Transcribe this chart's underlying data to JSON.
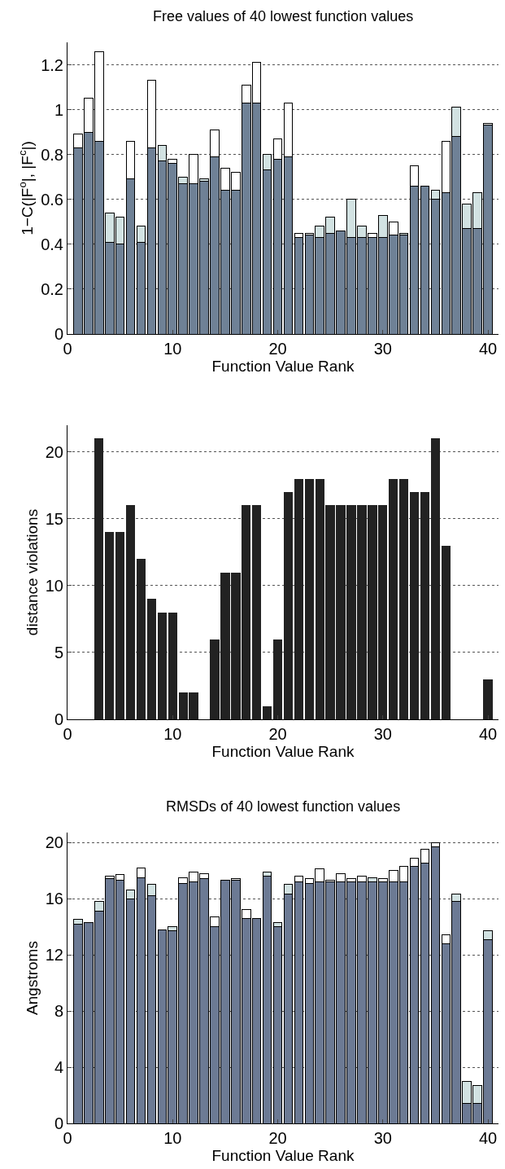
{
  "chart_data": [
    {
      "type": "bar",
      "title": "Free values of 40 lowest function values",
      "xlabel": "Function Value Rank",
      "ylabel": "1−C(|F$^{o}$|, |F$^{c}$|)",
      "stacked": true,
      "grid": "y",
      "x": [
        1,
        2,
        3,
        4,
        5,
        6,
        7,
        8,
        9,
        10,
        11,
        12,
        13,
        14,
        15,
        16,
        17,
        18,
        19,
        20,
        21,
        22,
        23,
        24,
        25,
        26,
        27,
        28,
        29,
        30,
        31,
        32,
        33,
        34,
        35,
        36,
        37,
        38,
        39,
        40
      ],
      "xlim": [
        0,
        41
      ],
      "xticks": [
        0,
        10,
        20,
        30,
        40
      ],
      "ylim": [
        0,
        1.3
      ],
      "yticks": [
        0,
        0.2,
        0.4,
        0.6,
        0.8,
        1,
        1.2
      ],
      "series": [
        {
          "color": "#6f8196",
          "values": [
            0.83,
            0.9,
            0.86,
            0.41,
            0.4,
            0.69,
            0.41,
            0.83,
            0.77,
            0.76,
            0.67,
            0.67,
            0.68,
            0.79,
            0.64,
            0.64,
            1.03,
            1.03,
            0.73,
            0.78,
            0.79,
            0.43,
            0.44,
            0.43,
            0.45,
            0.46,
            0.43,
            0.43,
            0.43,
            0.43,
            0.44,
            0.44,
            0.66,
            0.66,
            0.6,
            0.63,
            0.88,
            0.47,
            0.47,
            0.93
          ]
        },
        {
          "color": "#d2e2e2",
          "values": [
            null,
            null,
            null,
            0.13,
            0.12,
            null,
            0.07,
            null,
            0.07,
            null,
            0.03,
            null,
            0.01,
            null,
            null,
            null,
            null,
            null,
            0.07,
            null,
            null,
            null,
            null,
            0.05,
            0.07,
            null,
            0.17,
            0.05,
            null,
            0.1,
            null,
            0.01,
            null,
            null,
            0.04,
            null,
            0.13,
            0.11,
            0.16,
            null
          ]
        },
        {
          "color": "#ffffff",
          "values": [
            0.06,
            0.15,
            0.4,
            null,
            null,
            0.17,
            null,
            0.3,
            null,
            0.02,
            null,
            0.13,
            null,
            0.12,
            0.1,
            0.08,
            0.08,
            0.18,
            null,
            0.09,
            0.24,
            0.02,
            0.01,
            null,
            null,
            null,
            null,
            null,
            0.02,
            null,
            0.06,
            null,
            0.09,
            null,
            null,
            0.23,
            null,
            null,
            null,
            0.01
          ]
        }
      ]
    },
    {
      "type": "bar",
      "xlabel": "Function Value Rank",
      "ylabel": "distance violations",
      "grid": "y",
      "x": [
        1,
        2,
        3,
        4,
        5,
        6,
        7,
        8,
        9,
        10,
        11,
        12,
        13,
        14,
        15,
        16,
        17,
        18,
        19,
        20,
        21,
        22,
        23,
        24,
        25,
        26,
        27,
        28,
        29,
        30,
        31,
        32,
        33,
        34,
        35,
        36,
        37,
        38,
        39,
        40
      ],
      "xlim": [
        0,
        41
      ],
      "xticks": [
        0,
        10,
        20,
        30,
        40
      ],
      "ylim": [
        0,
        22
      ],
      "yticks": [
        0,
        5,
        10,
        15,
        20
      ],
      "series": [
        {
          "color": "#222222",
          "values": [
            0,
            0,
            21,
            14,
            14,
            16,
            12,
            9,
            8,
            8,
            2,
            2,
            0,
            6,
            11,
            11,
            16,
            16,
            1,
            6,
            17,
            18,
            18,
            18,
            16,
            16,
            16,
            16,
            16,
            16,
            18,
            18,
            17,
            17,
            21,
            13,
            0,
            0,
            0,
            3
          ]
        }
      ]
    },
    {
      "type": "bar",
      "title": "RMSDs of 40 lowest function values",
      "xlabel": "Function Value Rank",
      "ylabel": "Angstroms",
      "stacked": true,
      "grid": "y",
      "x": [
        1,
        2,
        3,
        4,
        5,
        6,
        7,
        8,
        9,
        10,
        11,
        12,
        13,
        14,
        15,
        16,
        17,
        18,
        19,
        20,
        21,
        22,
        23,
        24,
        25,
        26,
        27,
        28,
        29,
        30,
        31,
        32,
        33,
        34,
        35,
        36,
        37,
        38,
        39,
        40
      ],
      "xlim": [
        0,
        41
      ],
      "xticks": [
        0,
        10,
        20,
        30,
        40
      ],
      "ylim": [
        0,
        20.7
      ],
      "yticks": [
        0,
        4,
        8,
        12,
        16,
        20
      ],
      "series": [
        {
          "color": "#6c7a94",
          "values": [
            14.2,
            14.3,
            15.1,
            17.4,
            17.3,
            16.0,
            17.5,
            16.2,
            13.8,
            13.7,
            17.1,
            17.2,
            17.4,
            14.0,
            17.3,
            17.3,
            14.6,
            14.6,
            17.6,
            14.0,
            16.3,
            17.2,
            17.1,
            17.2,
            17.2,
            17.2,
            17.2,
            17.2,
            17.2,
            17.2,
            17.2,
            17.2,
            18.3,
            18.5,
            19.7,
            12.8,
            15.8,
            1.4,
            1.4,
            13.1
          ]
        },
        {
          "color": "#d2e2e2",
          "values": [
            0.3,
            null,
            0.7,
            null,
            null,
            0.6,
            null,
            0.8,
            null,
            0.3,
            null,
            null,
            null,
            null,
            null,
            null,
            null,
            null,
            0.3,
            0.3,
            0.7,
            null,
            null,
            null,
            null,
            null,
            null,
            null,
            0.3,
            null,
            null,
            null,
            null,
            null,
            null,
            null,
            0.5,
            1.6,
            1.3,
            0.6
          ]
        },
        {
          "color": "#ffffff",
          "values": [
            null,
            null,
            null,
            0.2,
            0.4,
            null,
            0.7,
            null,
            null,
            null,
            0.4,
            0.7,
            0.4,
            0.7,
            null,
            0.1,
            0.6,
            null,
            null,
            null,
            null,
            0.4,
            0.3,
            0.9,
            0.1,
            0.6,
            0.2,
            0.4,
            null,
            0.2,
            0.8,
            1.1,
            0.6,
            1.0,
            0.3,
            0.6,
            null,
            null,
            null,
            null
          ]
        }
      ]
    }
  ]
}
